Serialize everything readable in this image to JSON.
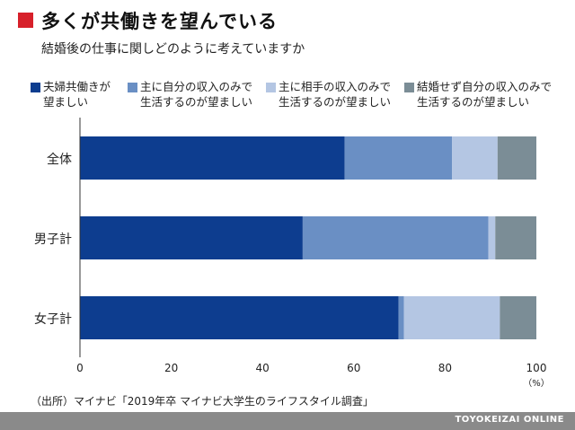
{
  "title": "多くが共働きを望んでいる",
  "subtitle": "結婚後の仕事に関しどのように考えていますか",
  "source": "（出所）マイナビ「2019年卒 マイナビ大学生のライフスタイル調査」",
  "brand": "TOYOKEIZAI ONLINE",
  "colors": {
    "accent": "#d7202a",
    "series": [
      "#0d3d8f",
      "#6a8fc4",
      "#b4c6e3",
      "#7b8d96"
    ],
    "footer": "#8a8a8a"
  },
  "chart_data": {
    "type": "bar",
    "orientation": "horizontal",
    "stacked": true,
    "categories": [
      "全体",
      "男子計",
      "女子計"
    ],
    "series": [
      {
        "name": "夫婦共働きが\n望ましい",
        "values": [
          58.0,
          48.8,
          69.8
        ]
      },
      {
        "name": "主に自分の収入のみで\n生活するのが望ましい",
        "values": [
          23.5,
          40.7,
          1.2
        ]
      },
      {
        "name": "主に相手の収入のみで\n生活するのが望ましい",
        "values": [
          10.0,
          1.5,
          21.0
        ]
      },
      {
        "name": "結婚せず自分の収入のみで\n生活するのが望ましい",
        "values": [
          8.5,
          9.0,
          8.0
        ]
      }
    ],
    "xlim": [
      0,
      100
    ],
    "xticks": [
      "0",
      "20",
      "40",
      "60",
      "80",
      "100"
    ],
    "xunit": "（%）",
    "grid": false,
    "legend": "top"
  }
}
